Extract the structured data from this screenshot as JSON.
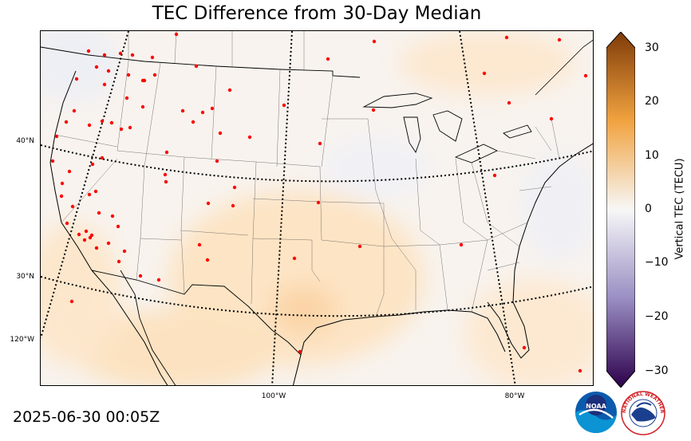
{
  "title": "TEC Difference from 30-Day Median",
  "timestamp": "2025-06-30 00:05Z",
  "lat_labels": [
    "40°N",
    "30°N",
    "120°W"
  ],
  "lon_labels": [
    "100°W",
    "80°W"
  ],
  "colorbar": {
    "label": "Vertical TEC (TECU)",
    "ticks": [
      "30",
      "20",
      "10",
      "0",
      "−10",
      "−20",
      "−30"
    ],
    "range": [
      -30,
      30
    ],
    "colors": {
      "high": "#7f3b08",
      "mid_high": "#f1a340",
      "zero": "#f7f7f7",
      "mid_low": "#998ec3",
      "low": "#2d004b"
    }
  },
  "logos": {
    "noaa": "NOAA",
    "nws": "NATIONAL WEATHER SERVICE"
  },
  "station_marker_color": "#ff0000"
}
